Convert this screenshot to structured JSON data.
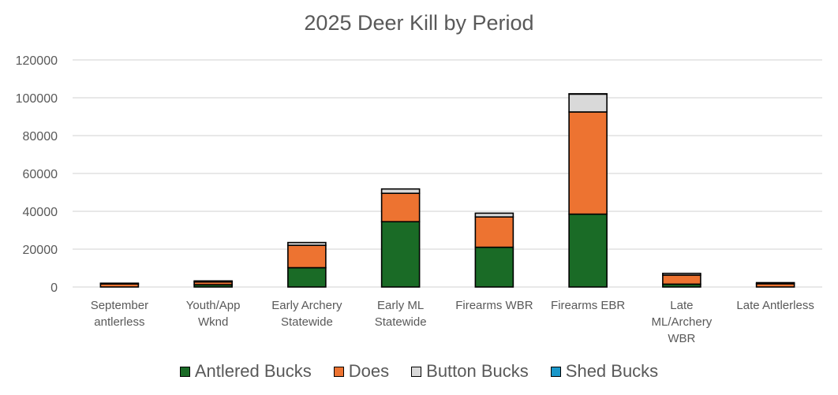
{
  "chart_data": {
    "type": "bar",
    "stacked": true,
    "title": "2025 Deer Kill by Period",
    "xlabel": "",
    "ylabel": "",
    "ylim": [
      0,
      120000
    ],
    "yticks": [
      0,
      20000,
      40000,
      60000,
      80000,
      100000,
      120000
    ],
    "grid": true,
    "legend_position": "bottom",
    "categories": [
      [
        "September",
        "antlerless"
      ],
      [
        "Youth/App",
        "Wknd"
      ],
      [
        "Early Archery",
        "Statewide"
      ],
      [
        "Early ML",
        "Statewide"
      ],
      [
        "Firearms WBR"
      ],
      [
        "Firearms EBR"
      ],
      [
        "Late",
        "ML/Archery",
        "WBR"
      ],
      [
        "Late Antlerless"
      ]
    ],
    "series": [
      {
        "name": "Antlered Bucks",
        "color": "#1a6b26",
        "values": [
          0,
          1200,
          10200,
          34500,
          21000,
          38500,
          1500,
          0
        ]
      },
      {
        "name": "Does",
        "color": "#ed7331",
        "values": [
          1600,
          1500,
          11800,
          15000,
          16000,
          54000,
          4800,
          1700
        ]
      },
      {
        "name": "Button Bucks",
        "color": "#d9d9d9",
        "values": [
          400,
          500,
          1500,
          2300,
          2000,
          9500,
          900,
          600
        ]
      },
      {
        "name": "Shed Bucks",
        "color": "#1a97c9",
        "values": [
          0,
          0,
          0,
          0,
          0,
          100,
          0,
          0
        ]
      }
    ]
  }
}
